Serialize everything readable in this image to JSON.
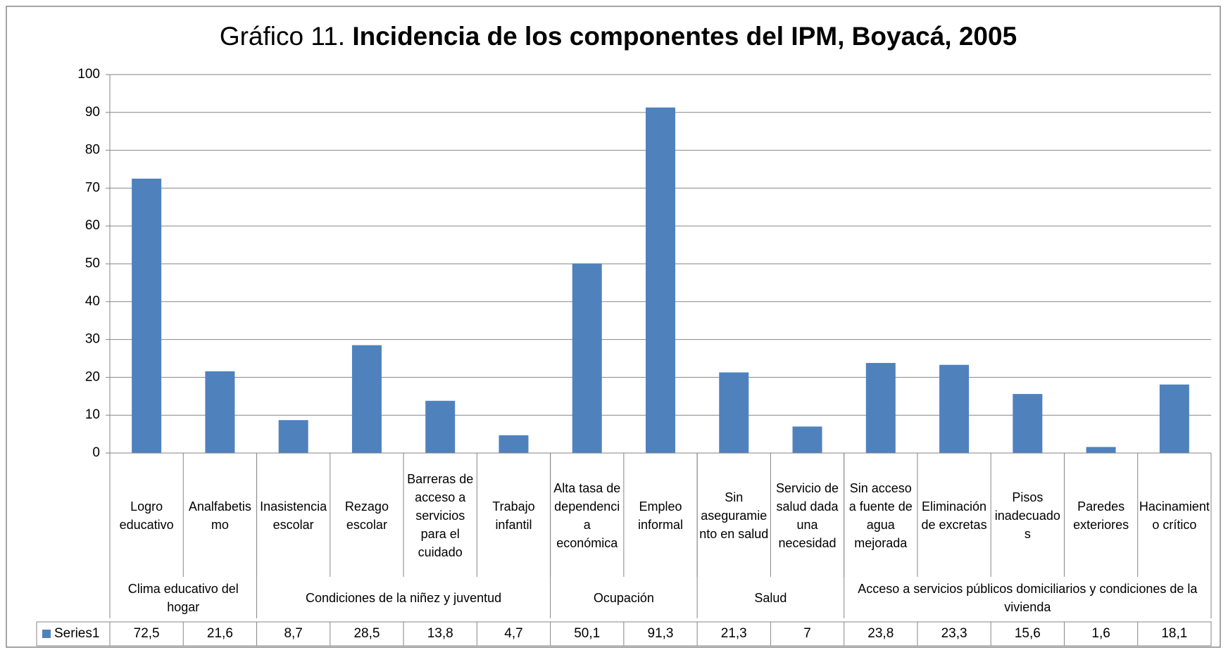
{
  "chart_data": {
    "type": "bar",
    "title_number": "Gráfico 11.",
    "title": "Incidencia de los componentes del IPM, Boyacá, 2005",
    "groups": [
      {
        "name": "Clima educativo del hogar",
        "categories": [
          "Logro educativo",
          "Analfabetismo"
        ]
      },
      {
        "name": "Condiciones de la niñez y juventud",
        "categories": [
          "Inasistencia escolar",
          "Rezago escolar",
          "Barreras de acceso a servicios para el cuidado",
          "Trabajo infantil"
        ]
      },
      {
        "name": "Ocupación",
        "categories": [
          "Alta tasa de dependencia económica",
          "Empleo informal"
        ]
      },
      {
        "name": "Salud",
        "categories": [
          "Sin aseguramiento en salud",
          "Servicio de salud dada una necesidad"
        ]
      },
      {
        "name": "Acceso a servicios públicos domiciliarios y condiciones de la vivienda",
        "categories": [
          "Sin acceso a fuente de agua mejorada",
          "Eliminación de excretas",
          "Pisos inadecuados",
          "Paredes exteriores",
          "Hacinamiento crítico"
        ]
      }
    ],
    "series": [
      {
        "name": "Series1",
        "color": "#4f81bd",
        "values": [
          72.5,
          21.6,
          8.7,
          28.5,
          13.8,
          4.7,
          50.1,
          91.3,
          21.3,
          7,
          23.8,
          23.3,
          15.6,
          1.6,
          18.1
        ],
        "value_labels": [
          "72,5",
          "21,6",
          "8,7",
          "28,5",
          "13,8",
          "4,7",
          "50,1",
          "91,3",
          "21,3",
          "7",
          "23,8",
          "23,3",
          "15,6",
          "1,6",
          "18,1"
        ]
      }
    ],
    "ylim": [
      0,
      100
    ],
    "yticks": [
      0,
      10,
      20,
      30,
      40,
      50,
      60,
      70,
      80,
      90,
      100
    ],
    "grid": true
  }
}
